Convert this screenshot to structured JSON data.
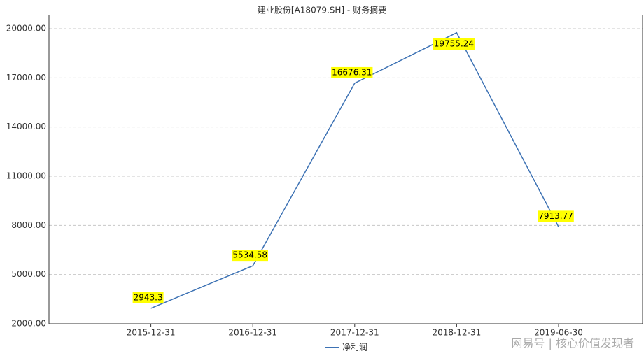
{
  "chart_data": {
    "type": "line",
    "title": "建业股份[A18079.SH] - 财务摘要",
    "categories": [
      "2015-12-31",
      "2016-12-31",
      "2017-12-31",
      "2018-12-31",
      "2019-06-30"
    ],
    "series": [
      {
        "name": "净利润",
        "color": "#3d72b4",
        "values": [
          2943.3,
          5534.58,
          16676.31,
          19755.24,
          7913.77
        ]
      }
    ],
    "ylim": [
      2000,
      20000
    ],
    "yticks": [
      {
        "value": 2000,
        "label": "2000.00"
      },
      {
        "value": 5000,
        "label": "5000.00"
      },
      {
        "value": 8000,
        "label": "8000.00"
      },
      {
        "value": 11000,
        "label": "11000.00"
      },
      {
        "value": 14000,
        "label": "14000.00"
      },
      {
        "value": 17000,
        "label": "17000.00"
      },
      {
        "value": 20000,
        "label": "20000.00"
      }
    ],
    "grid": true,
    "value_label_color": "#ffff00",
    "watermark": "网易号 | 核心价值发现者"
  }
}
